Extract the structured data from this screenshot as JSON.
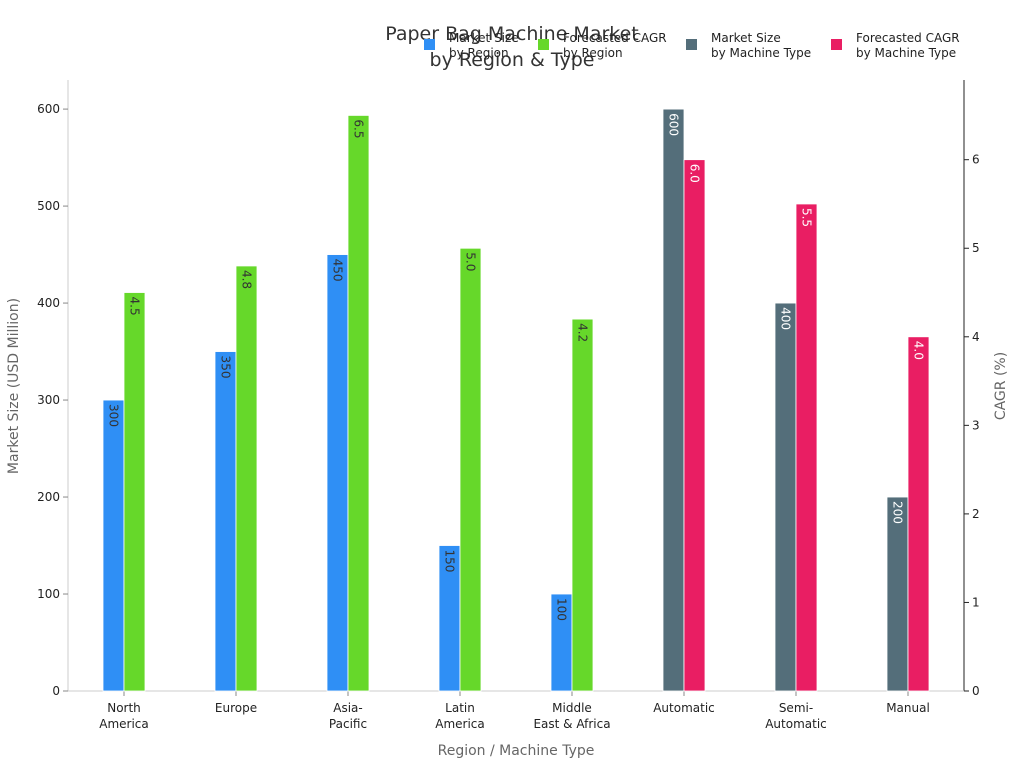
{
  "chart_data": {
    "type": "bar",
    "title": [
      "Paper Bag Machine Market",
      "by Region & Type"
    ],
    "xlabel": "Region / Machine Type",
    "ylabel": "Market Size (USD Million)",
    "y2label": "CAGR (%)",
    "ylim": [
      0,
      630
    ],
    "yticks": [
      0,
      100,
      200,
      300,
      400,
      500,
      600
    ],
    "y2lim": [
      0,
      6.9
    ],
    "y2ticks": [
      0,
      1,
      2,
      3,
      4,
      5,
      6
    ],
    "grid": false,
    "legend_position": "top-right",
    "categories": [
      [
        "North",
        "America"
      ],
      [
        "Europe"
      ],
      [
        "Asia-",
        "Pacific"
      ],
      [
        "Latin",
        "America"
      ],
      [
        "Middle",
        "East & Africa"
      ],
      [
        "Automatic"
      ],
      [
        "Semi-",
        "Automatic"
      ],
      [
        "Manual"
      ]
    ],
    "series": [
      {
        "name": [
          "Market Size",
          "by Region"
        ],
        "axis": "left",
        "offset": -1,
        "color": "#2f8ff5",
        "label_color": "#333333",
        "values": [
          300,
          350,
          450,
          150,
          100,
          null,
          null,
          null
        ],
        "labels": [
          "300",
          "350",
          "450",
          "150",
          "100",
          null,
          null,
          null
        ]
      },
      {
        "name": [
          "Forecasted CAGR",
          "by Region"
        ],
        "axis": "right",
        "offset": 0,
        "color": "#66d82a",
        "label_color": "#333333",
        "values": [
          4.5,
          4.8,
          6.5,
          5.0,
          4.2,
          null,
          null,
          null
        ],
        "labels": [
          "4.5",
          "4.8",
          "6.5",
          "5.0",
          "4.2",
          null,
          null,
          null
        ]
      },
      {
        "name": [
          "Market Size",
          "by Machine Type"
        ],
        "axis": "left",
        "offset": -1,
        "color": "#546e7a",
        "label_color": "#ffffff",
        "values": [
          null,
          null,
          null,
          null,
          null,
          600,
          400,
          200
        ],
        "labels": [
          null,
          null,
          null,
          null,
          null,
          "600",
          "400",
          "200"
        ]
      },
      {
        "name": [
          "Forecasted CAGR",
          "by Machine Type"
        ],
        "axis": "right",
        "offset": 0,
        "color": "#e91e63",
        "label_color": "#ffffff",
        "values": [
          null,
          null,
          null,
          null,
          null,
          6.0,
          5.5,
          4.0
        ],
        "labels": [
          null,
          null,
          null,
          null,
          null,
          "6.0",
          "5.5",
          "4.0"
        ]
      }
    ]
  }
}
